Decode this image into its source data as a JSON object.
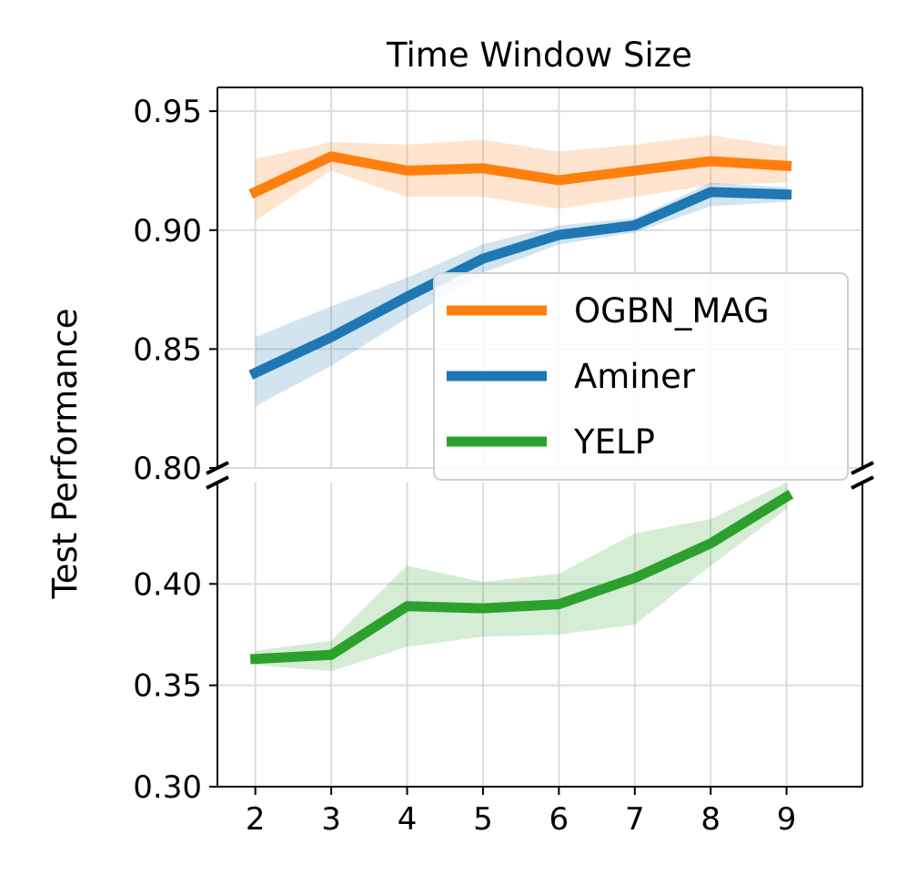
{
  "chart_data": {
    "type": "line",
    "title": "Time Window Size",
    "xlabel": "",
    "ylabel": "Test Performance",
    "x": [
      2,
      3,
      4,
      5,
      6,
      7,
      8,
      9
    ],
    "xlim": [
      1.5,
      10.0
    ],
    "grid": true,
    "legend_position": "right",
    "broken_axis": true,
    "panels": [
      {
        "name": "upper",
        "ylim": [
          0.8,
          0.96
        ],
        "yticks": [
          "0.95",
          "0.90",
          "0.85",
          "0.80"
        ]
      },
      {
        "name": "lower",
        "ylim": [
          0.3,
          0.45
        ],
        "yticks": [
          "0.40",
          "0.35",
          "0.30"
        ]
      }
    ],
    "series": [
      {
        "name": "OGBN_MAG",
        "color": "#ff7f0e",
        "panel": "upper",
        "values": [
          0.916,
          0.931,
          0.925,
          0.926,
          0.921,
          0.925,
          0.929,
          0.927
        ],
        "lower": [
          0.904,
          0.925,
          0.914,
          0.914,
          0.909,
          0.914,
          0.919,
          0.92
        ],
        "upper": [
          0.93,
          0.937,
          0.936,
          0.938,
          0.933,
          0.936,
          0.94,
          0.935
        ]
      },
      {
        "name": "Aminer",
        "color": "#1f77b4",
        "panel": "upper",
        "values": [
          0.84,
          0.855,
          0.872,
          0.888,
          0.898,
          0.902,
          0.916,
          0.915
        ],
        "lower": [
          0.826,
          0.843,
          0.863,
          0.882,
          0.894,
          0.899,
          0.91,
          0.912
        ],
        "upper": [
          0.855,
          0.868,
          0.88,
          0.894,
          0.902,
          0.905,
          0.92,
          0.918
        ]
      },
      {
        "name": "YELP",
        "color": "#2ca02c",
        "panel": "lower",
        "values": [
          0.363,
          0.365,
          0.389,
          0.388,
          0.39,
          0.403,
          0.42,
          0.443
        ],
        "lower": [
          0.36,
          0.357,
          0.369,
          0.374,
          0.375,
          0.38,
          0.409,
          0.437
        ],
        "upper": [
          0.367,
          0.372,
          0.409,
          0.401,
          0.405,
          0.425,
          0.432,
          0.45
        ]
      }
    ]
  }
}
